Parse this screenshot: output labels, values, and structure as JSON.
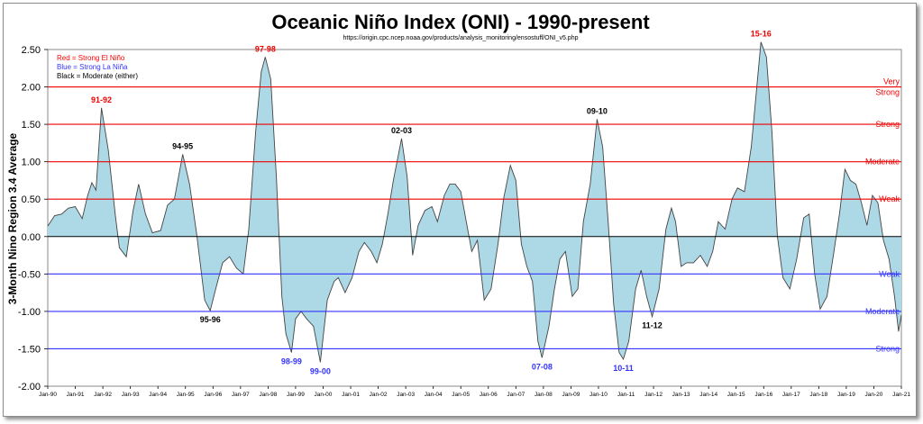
{
  "chart_data": {
    "type": "area",
    "title": "Oceanic Niño Index (ONI) - 1990-present",
    "subtitle": "https://origin.cpc.ncep.noaa.gov/products/analysis_monitoring/ensostuff/ONI_v5.php",
    "ylabel": "3-Month Nino Region 3.4 Average",
    "ylim": [
      -2.0,
      2.5
    ],
    "yticks": [
      "2.50",
      "2.00",
      "1.50",
      "1.00",
      "0.50",
      "0.00",
      "-0.50",
      "-1.00",
      "-1.50",
      "-2.00"
    ],
    "xlim_years": [
      1990,
      2021
    ],
    "xticks": [
      "Jan-90",
      "Jan-91",
      "Jan-92",
      "Jan-93",
      "Jan-94",
      "Jan-95",
      "Jan-96",
      "Jan-97",
      "Jan-98",
      "Jan-99",
      "Jan-00",
      "Jan-01",
      "Jan-02",
      "Jan-03",
      "Jan-04",
      "Jan-05",
      "Jan-06",
      "Jan-07",
      "Jan-08",
      "Jan-09",
      "Jan-10",
      "Jan-11",
      "Jan-12",
      "Jan-13",
      "Jan-14",
      "Jan-15",
      "Jan-16",
      "Jan-17",
      "Jan-18",
      "Jan-19",
      "Jan-20",
      "Jan-21"
    ],
    "legend": {
      "placement": "top-left",
      "items": [
        {
          "text": "Red = Strong  El Niño",
          "color": "#ff0000"
        },
        {
          "text": "Blue = Strong  La Niña",
          "color": "#3333ff"
        },
        {
          "text": "Black = Moderate  (either)",
          "color": "#000000"
        }
      ]
    },
    "thresholds": [
      {
        "value": 2.0,
        "color": "#ee0000",
        "lines": [
          "Very",
          "Strong"
        ]
      },
      {
        "value": 1.5,
        "color": "#ee0000",
        "lines": [
          "Strong"
        ]
      },
      {
        "value": 1.0,
        "color": "#ee0000",
        "lines": [
          "Moderate"
        ]
      },
      {
        "value": 0.5,
        "color": "#ee0000",
        "lines": [
          "Weak"
        ]
      },
      {
        "value": -0.5,
        "color": "#3333ff",
        "lines": [
          "Weak"
        ]
      },
      {
        "value": -1.0,
        "color": "#3333ff",
        "lines": [
          "Moderate"
        ]
      },
      {
        "value": -1.5,
        "color": "#3333ff",
        "lines": [
          "Strong"
        ]
      }
    ],
    "annotations": [
      {
        "label": "91-92",
        "x": 1991.95,
        "y": 1.72,
        "color": "#ee0000",
        "pos": "above"
      },
      {
        "label": "94-95",
        "x": 1994.9,
        "y": 1.1,
        "color": "#000000",
        "pos": "above"
      },
      {
        "label": "95-96",
        "x": 1995.9,
        "y": -0.99,
        "color": "#000000",
        "pos": "below"
      },
      {
        "label": "97-98",
        "x": 1997.9,
        "y": 2.4,
        "color": "#ee0000",
        "pos": "above"
      },
      {
        "label": "98-99",
        "x": 1998.85,
        "y": -1.55,
        "color": "#3333ff",
        "pos": "below"
      },
      {
        "label": "99-00",
        "x": 1999.9,
        "y": -1.68,
        "color": "#3333ff",
        "pos": "below"
      },
      {
        "label": "02-03",
        "x": 2002.85,
        "y": 1.31,
        "color": "#000000",
        "pos": "above"
      },
      {
        "label": "07-08",
        "x": 2007.95,
        "y": -1.62,
        "color": "#3333ff",
        "pos": "below"
      },
      {
        "label": "09-10",
        "x": 2009.95,
        "y": 1.57,
        "color": "#000000",
        "pos": "above"
      },
      {
        "label": "10-11",
        "x": 2010.9,
        "y": -1.64,
        "color": "#3333ff",
        "pos": "below"
      },
      {
        "label": "11-12",
        "x": 2011.95,
        "y": -1.07,
        "color": "#000000",
        "pos": "below"
      },
      {
        "label": "15-16",
        "x": 2015.9,
        "y": 2.6,
        "color": "#ee0000",
        "pos": "above"
      }
    ],
    "series": [
      {
        "points": [
          [
            1990.0,
            0.14
          ],
          [
            1990.25,
            0.28
          ],
          [
            1990.5,
            0.3
          ],
          [
            1990.75,
            0.38
          ],
          [
            1991.0,
            0.4
          ],
          [
            1991.25,
            0.24
          ],
          [
            1991.45,
            0.55
          ],
          [
            1991.6,
            0.72
          ],
          [
            1991.75,
            0.62
          ],
          [
            1991.95,
            1.72
          ],
          [
            1992.2,
            1.15
          ],
          [
            1992.45,
            0.3
          ],
          [
            1992.6,
            -0.15
          ],
          [
            1992.85,
            -0.27
          ],
          [
            1993.1,
            0.35
          ],
          [
            1993.3,
            0.7
          ],
          [
            1993.55,
            0.3
          ],
          [
            1993.8,
            0.05
          ],
          [
            1994.1,
            0.08
          ],
          [
            1994.35,
            0.42
          ],
          [
            1994.6,
            0.5
          ],
          [
            1994.9,
            1.1
          ],
          [
            1995.15,
            0.7
          ],
          [
            1995.4,
            0.05
          ],
          [
            1995.7,
            -0.85
          ],
          [
            1995.9,
            -0.99
          ],
          [
            1996.1,
            -0.7
          ],
          [
            1996.35,
            -0.35
          ],
          [
            1996.6,
            -0.27
          ],
          [
            1996.85,
            -0.42
          ],
          [
            1997.1,
            -0.5
          ],
          [
            1997.3,
            0.1
          ],
          [
            1997.55,
            1.4
          ],
          [
            1997.75,
            2.2
          ],
          [
            1997.9,
            2.4
          ],
          [
            1998.1,
            2.1
          ],
          [
            1998.3,
            0.8
          ],
          [
            1998.5,
            -0.8
          ],
          [
            1998.65,
            -1.3
          ],
          [
            1998.85,
            -1.55
          ],
          [
            1999.0,
            -1.1
          ],
          [
            1999.2,
            -1.0
          ],
          [
            1999.4,
            -1.1
          ],
          [
            1999.65,
            -1.2
          ],
          [
            1999.9,
            -1.68
          ],
          [
            2000.15,
            -0.85
          ],
          [
            2000.4,
            -0.6
          ],
          [
            2000.55,
            -0.55
          ],
          [
            2000.8,
            -0.75
          ],
          [
            2001.05,
            -0.55
          ],
          [
            2001.3,
            -0.2
          ],
          [
            2001.5,
            -0.08
          ],
          [
            2001.75,
            -0.2
          ],
          [
            2001.95,
            -0.35
          ],
          [
            2002.15,
            -0.1
          ],
          [
            2002.35,
            0.3
          ],
          [
            2002.55,
            0.75
          ],
          [
            2002.85,
            1.31
          ],
          [
            2003.05,
            0.8
          ],
          [
            2003.25,
            -0.25
          ],
          [
            2003.45,
            0.15
          ],
          [
            2003.7,
            0.35
          ],
          [
            2003.95,
            0.4
          ],
          [
            2004.15,
            0.2
          ],
          [
            2004.4,
            0.55
          ],
          [
            2004.6,
            0.7
          ],
          [
            2004.8,
            0.7
          ],
          [
            2005.0,
            0.6
          ],
          [
            2005.2,
            0.2
          ],
          [
            2005.4,
            -0.2
          ],
          [
            2005.6,
            -0.05
          ],
          [
            2005.85,
            -0.85
          ],
          [
            2006.1,
            -0.7
          ],
          [
            2006.35,
            -0.1
          ],
          [
            2006.55,
            0.5
          ],
          [
            2006.8,
            0.95
          ],
          [
            2007.0,
            0.75
          ],
          [
            2007.2,
            -0.1
          ],
          [
            2007.4,
            -0.4
          ],
          [
            2007.6,
            -0.6
          ],
          [
            2007.8,
            -1.4
          ],
          [
            2007.95,
            -1.62
          ],
          [
            2008.2,
            -1.2
          ],
          [
            2008.4,
            -0.7
          ],
          [
            2008.6,
            -0.3
          ],
          [
            2008.8,
            -0.2
          ],
          [
            2009.05,
            -0.8
          ],
          [
            2009.25,
            -0.7
          ],
          [
            2009.45,
            0.2
          ],
          [
            2009.7,
            0.7
          ],
          [
            2009.95,
            1.57
          ],
          [
            2010.15,
            1.2
          ],
          [
            2010.35,
            0.2
          ],
          [
            2010.55,
            -0.9
          ],
          [
            2010.75,
            -1.55
          ],
          [
            2010.9,
            -1.64
          ],
          [
            2011.1,
            -1.4
          ],
          [
            2011.35,
            -0.7
          ],
          [
            2011.55,
            -0.45
          ],
          [
            2011.75,
            -0.8
          ],
          [
            2011.95,
            -1.07
          ],
          [
            2012.2,
            -0.7
          ],
          [
            2012.45,
            0.1
          ],
          [
            2012.65,
            0.38
          ],
          [
            2012.8,
            0.2
          ],
          [
            2013.0,
            -0.4
          ],
          [
            2013.2,
            -0.35
          ],
          [
            2013.45,
            -0.35
          ],
          [
            2013.7,
            -0.25
          ],
          [
            2013.95,
            -0.4
          ],
          [
            2014.15,
            -0.2
          ],
          [
            2014.35,
            0.2
          ],
          [
            2014.6,
            0.1
          ],
          [
            2014.85,
            0.5
          ],
          [
            2015.05,
            0.65
          ],
          [
            2015.3,
            0.6
          ],
          [
            2015.55,
            1.2
          ],
          [
            2015.9,
            2.6
          ],
          [
            2016.1,
            2.4
          ],
          [
            2016.3,
            1.4
          ],
          [
            2016.5,
            0.0
          ],
          [
            2016.7,
            -0.55
          ],
          [
            2016.95,
            -0.7
          ],
          [
            2017.2,
            -0.3
          ],
          [
            2017.45,
            0.25
          ],
          [
            2017.65,
            0.3
          ],
          [
            2017.85,
            -0.5
          ],
          [
            2018.05,
            -0.97
          ],
          [
            2018.3,
            -0.8
          ],
          [
            2018.55,
            -0.2
          ],
          [
            2018.75,
            0.3
          ],
          [
            2018.95,
            0.9
          ],
          [
            2019.15,
            0.75
          ],
          [
            2019.35,
            0.7
          ],
          [
            2019.55,
            0.45
          ],
          [
            2019.75,
            0.15
          ],
          [
            2019.95,
            0.55
          ],
          [
            2020.15,
            0.45
          ],
          [
            2020.35,
            -0.05
          ],
          [
            2020.55,
            -0.3
          ],
          [
            2020.75,
            -0.8
          ],
          [
            2020.9,
            -1.27
          ],
          [
            2021.0,
            -1.05
          ]
        ]
      }
    ]
  }
}
